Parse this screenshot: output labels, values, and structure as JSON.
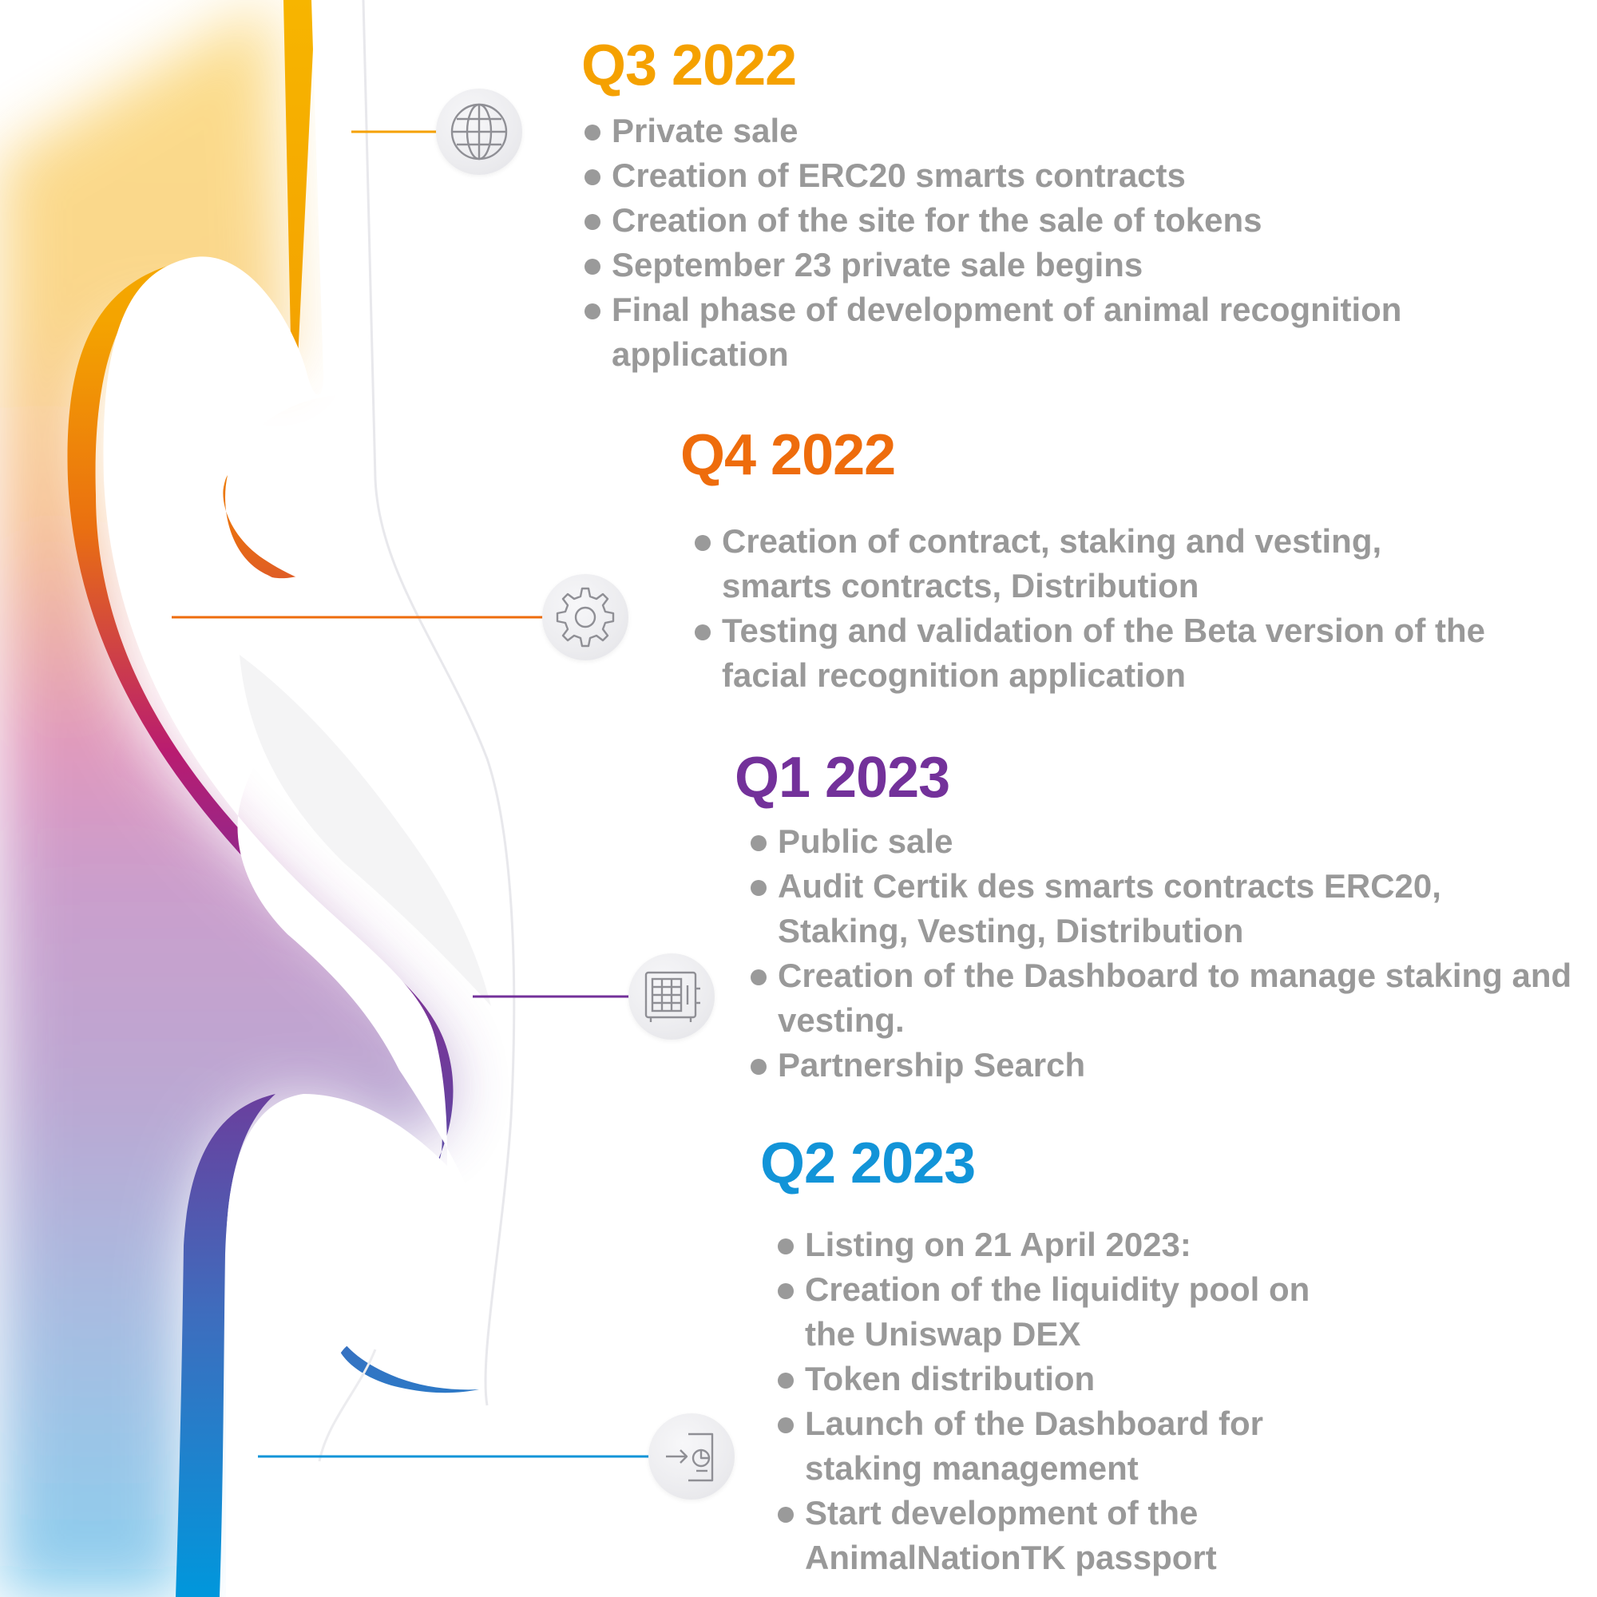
{
  "phases": [
    {
      "id": "q3",
      "title": "Q3 2022",
      "color": "#f5a100",
      "icon": "globe-icon",
      "items": [
        "Private sale",
        "Creation of ERC20 smarts contracts",
        "Creation of the site for the sale of tokens",
        "September 23 private sale begins",
        "Final phase of development of animal recognition application"
      ]
    },
    {
      "id": "q4",
      "title": "Q4 2022",
      "color": "#ee6c0c",
      "icon": "gear-icon",
      "items": [
        "Creation of contract, staking and vesting, smarts contracts, Distribution",
        "Testing and validation of the Beta version of the facial recognition application"
      ]
    },
    {
      "id": "q1",
      "title": "Q1 2023",
      "color": "#73319a",
      "icon": "safe-icon",
      "items": [
        "Public sale",
        "Audit Certik des smarts contracts ERC20, Staking, Vesting, Distribution",
        "Creation of the Dashboard to manage staking and vesting.",
        "Partnership Search"
      ]
    },
    {
      "id": "q2",
      "title": "Q2 2023",
      "color": "#1294d8",
      "icon": "dashboard-login-icon",
      "items": [
        "Listing on 21 April 2023:",
        "Creation of the liquidity pool on the Uniswap DEX",
        "Token distribution",
        "Launch of the Dashboard for staking management",
        "Start development of the AnimalNationTK passport"
      ]
    }
  ],
  "ribbon_gradient": [
    "#f7b500",
    "#ef7d00",
    "#e2452f",
    "#a3167f",
    "#6e3a9b",
    "#4860b4",
    "#0097dc"
  ]
}
